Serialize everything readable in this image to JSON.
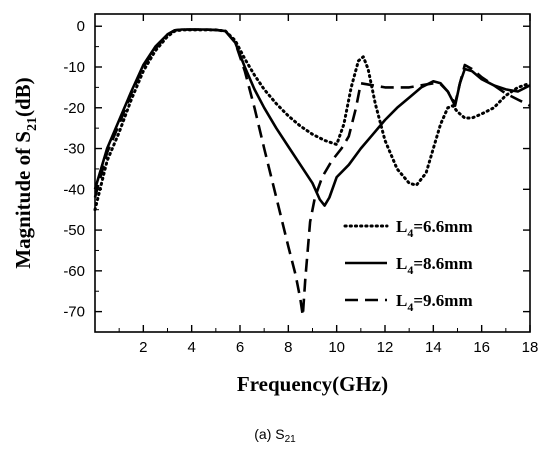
{
  "chart_data": {
    "type": "line",
    "xlabel": "Frequency(GHz)",
    "ylabel_parts": [
      "Magnitude of S",
      "21",
      "(dB)"
    ],
    "caption_parts": [
      "(a) S",
      "21"
    ],
    "xlim": [
      0,
      18
    ],
    "ylim": [
      -75,
      3
    ],
    "xticks": [
      2,
      4,
      6,
      8,
      10,
      12,
      14,
      16,
      18
    ],
    "yticks": [
      0,
      -10,
      -20,
      -30,
      -40,
      -50,
      -60,
      -70
    ],
    "series": [
      {
        "name_parts": [
          "L",
          "4",
          "=6.6mm"
        ],
        "dash": "dot",
        "x": [
          0,
          0.5,
          1,
          1.5,
          2,
          2.5,
          3,
          3.3,
          3.6,
          4,
          4.5,
          5,
          5.4,
          5.8,
          6.2,
          6.6,
          7,
          7.5,
          8,
          8.5,
          9,
          9.5,
          10,
          10.3,
          10.6,
          10.9,
          11.1,
          11.3,
          11.6,
          12,
          12.5,
          13,
          13.3,
          13.7,
          14,
          14.3,
          14.6,
          14.8,
          15,
          15.3,
          15.6,
          16,
          16.5,
          17,
          17.5,
          18
        ],
        "y": [
          -45,
          -33,
          -26,
          -18,
          -11,
          -6,
          -2.5,
          -1.2,
          -0.9,
          -0.9,
          -0.9,
          -0.9,
          -1.2,
          -3.5,
          -8,
          -12,
          -15.5,
          -19,
          -22,
          -24.5,
          -26.5,
          -28,
          -29,
          -24,
          -15,
          -8.5,
          -7.5,
          -10.5,
          -19,
          -28,
          -35,
          -38.5,
          -39,
          -36,
          -30,
          -24,
          -20,
          -19.5,
          -21,
          -22.5,
          -22.5,
          -21.5,
          -20,
          -17,
          -15,
          -14
        ]
      },
      {
        "name_parts": [
          "L",
          "4",
          "=8.6mm"
        ],
        "dash": "solid",
        "x": [
          0,
          0.5,
          1,
          1.5,
          2,
          2.5,
          3,
          3.3,
          3.6,
          4,
          4.5,
          5,
          5.4,
          5.8,
          6.2,
          6.6,
          7,
          7.5,
          8,
          8.5,
          9,
          9.3,
          9.5,
          9.7,
          10,
          10.5,
          11,
          11.5,
          12,
          12.5,
          13,
          13.5,
          14,
          14.3,
          14.6,
          14.9,
          15.1,
          15.3,
          15.6,
          16,
          16.5,
          17,
          17.5,
          18
        ],
        "y": [
          -40,
          -30,
          -23,
          -16,
          -9.5,
          -5,
          -2,
          -1,
          -0.8,
          -0.8,
          -0.8,
          -0.9,
          -1.2,
          -4,
          -10,
          -15.5,
          -20,
          -25,
          -29.5,
          -34,
          -38.5,
          -42.5,
          -44,
          -42,
          -37,
          -34,
          -30,
          -26.5,
          -23,
          -20,
          -17.5,
          -15,
          -13.5,
          -14,
          -16,
          -19.5,
          -14,
          -10.5,
          -11,
          -13,
          -14.5,
          -15.5,
          -16,
          -14.5
        ]
      },
      {
        "name_parts": [
          "L",
          "4",
          "=9.6mm"
        ],
        "dash": "dash",
        "x": [
          0,
          0.5,
          1,
          1.5,
          2,
          2.5,
          3,
          3.3,
          3.6,
          4,
          4.5,
          5,
          5.4,
          5.8,
          6.2,
          6.6,
          7,
          7.5,
          8,
          8.3,
          8.5,
          8.6,
          8.7,
          8.8,
          8.9,
          9.1,
          9.4,
          9.8,
          10.2,
          10.5,
          10.8,
          11,
          11.5,
          12,
          12.5,
          13,
          13.5,
          14,
          14.3,
          14.6,
          14.9,
          15.1,
          15.3,
          15.6,
          16,
          16.5,
          17,
          17.5,
          18
        ],
        "y": [
          -42,
          -31,
          -24,
          -16.5,
          -10,
          -5.5,
          -2,
          -1,
          -0.8,
          -0.8,
          -0.8,
          -0.9,
          -1.2,
          -4,
          -11,
          -20,
          -30,
          -42,
          -54,
          -61,
          -67,
          -71,
          -62,
          -55,
          -48,
          -42,
          -37,
          -33,
          -30,
          -27,
          -20,
          -14,
          -14.5,
          -15,
          -15,
          -15,
          -14.5,
          -14,
          -14.2,
          -16,
          -19,
          -14,
          -9.5,
          -10.5,
          -12.5,
          -14.5,
          -16.5,
          -18,
          -19.5
        ]
      }
    ]
  }
}
